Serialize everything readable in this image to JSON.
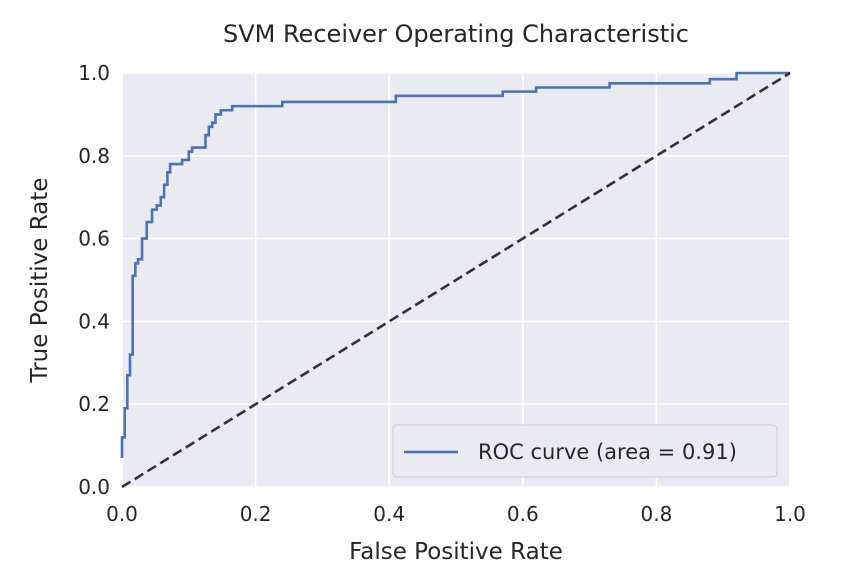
{
  "chart_data": {
    "type": "line",
    "title": "SVM Receiver Operating Characteristic",
    "xlabel": "False Positive Rate",
    "ylabel": "True Positive Rate",
    "xlim": [
      0.0,
      1.0
    ],
    "ylim": [
      0.0,
      1.0
    ],
    "xticks": [
      "0.0",
      "0.2",
      "0.4",
      "0.6",
      "0.8",
      "1.0"
    ],
    "yticks": [
      "0.0",
      "0.2",
      "0.4",
      "0.6",
      "0.8",
      "1.0"
    ],
    "grid": true,
    "legend_position": "lower right",
    "series": [
      {
        "name": "ROC curve (area = 0.91)",
        "color": "#4c72b0",
        "style": "solid",
        "x": [
          0.0,
          0.0,
          0.004,
          0.004,
          0.008,
          0.008,
          0.012,
          0.012,
          0.016,
          0.016,
          0.02,
          0.02,
          0.024,
          0.024,
          0.03,
          0.03,
          0.037,
          0.037,
          0.045,
          0.045,
          0.052,
          0.052,
          0.058,
          0.058,
          0.063,
          0.063,
          0.068,
          0.068,
          0.072,
          0.072,
          0.09,
          0.09,
          0.1,
          0.1,
          0.105,
          0.105,
          0.125,
          0.125,
          0.13,
          0.13,
          0.135,
          0.135,
          0.14,
          0.14,
          0.148,
          0.148,
          0.165,
          0.165,
          0.24,
          0.24,
          0.41,
          0.41,
          0.57,
          0.57,
          0.62,
          0.62,
          0.73,
          0.73,
          0.88,
          0.88,
          0.92,
          0.92,
          1.0
        ],
        "y": [
          0.07,
          0.12,
          0.12,
          0.19,
          0.19,
          0.27,
          0.27,
          0.32,
          0.32,
          0.51,
          0.51,
          0.54,
          0.54,
          0.55,
          0.55,
          0.6,
          0.6,
          0.64,
          0.64,
          0.67,
          0.67,
          0.68,
          0.68,
          0.7,
          0.7,
          0.73,
          0.73,
          0.76,
          0.76,
          0.78,
          0.78,
          0.79,
          0.79,
          0.81,
          0.81,
          0.82,
          0.82,
          0.85,
          0.85,
          0.87,
          0.87,
          0.88,
          0.88,
          0.9,
          0.9,
          0.91,
          0.91,
          0.92,
          0.92,
          0.93,
          0.93,
          0.945,
          0.945,
          0.955,
          0.955,
          0.965,
          0.965,
          0.975,
          0.975,
          0.985,
          0.985,
          1.0,
          1.0
        ]
      },
      {
        "color": "#333333",
        "style": "dashed",
        "x": [
          0.0,
          1.0
        ],
        "y": [
          0.0,
          1.0
        ]
      }
    ]
  }
}
